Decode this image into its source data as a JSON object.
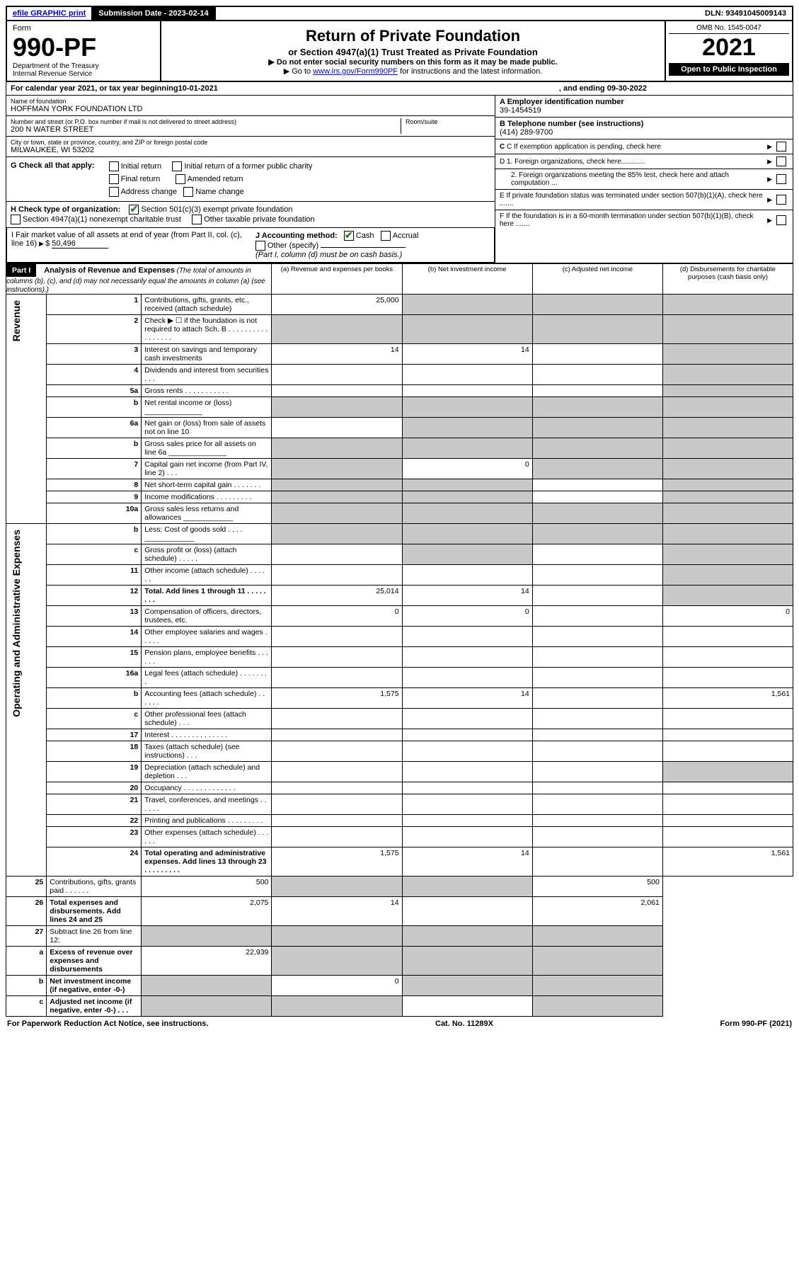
{
  "topbar": {
    "efile": "efile GRAPHIC print",
    "submission_label": "Submission Date - 2023-02-14",
    "dln": "DLN: 93491045009143"
  },
  "header": {
    "form_label": "Form",
    "form_number": "990-PF",
    "dept": "Department of the Treasury",
    "irs": "Internal Revenue Service",
    "title": "Return of Private Foundation",
    "subtitle": "or Section 4947(a)(1) Trust Treated as Private Foundation",
    "instr1": "▶ Do not enter social security numbers on this form as it may be made public.",
    "instr2_pre": "▶ Go to ",
    "instr2_link": "www.irs.gov/Form990PF",
    "instr2_post": " for instructions and the latest information.",
    "omb": "OMB No. 1545-0047",
    "year": "2021",
    "open": "Open to Public Inspection"
  },
  "calendar": {
    "text_pre": "For calendar year 2021, or tax year beginning ",
    "begin": "10-01-2021",
    "mid": ", and ending ",
    "end": "09-30-2022"
  },
  "entity": {
    "name_lbl": "Name of foundation",
    "name": "HOFFMAN YORK FOUNDATION LTD",
    "addr_lbl": "Number and street (or P.O. box number if mail is not delivered to street address)",
    "addr": "200 N WATER STREET",
    "room_lbl": "Room/suite",
    "city_lbl": "City or town, state or province, country, and ZIP or foreign postal code",
    "city": "MILWAUKEE, WI  53202",
    "ein_lbl": "A Employer identification number",
    "ein": "39-1454519",
    "tel_lbl": "B Telephone number (see instructions)",
    "tel": "(414) 289-9700",
    "c_lbl": "C If exemption application is pending, check here",
    "d1": "D 1. Foreign organizations, check here............",
    "d2": "2. Foreign organizations meeting the 85% test, check here and attach computation ...",
    "e": "E  If private foundation status was terminated under section 507(b)(1)(A), check here .......",
    "f": "F  If the foundation is in a 60-month termination under section 507(b)(1)(B), check here .......",
    "g_lbl": "G Check all that apply:",
    "g_opts": [
      "Initial return",
      "Initial return of a former public charity",
      "Final return",
      "Amended return",
      "Address change",
      "Name change"
    ],
    "h_lbl": "H Check type of organization:",
    "h_opt1": "Section 501(c)(3) exempt private foundation",
    "h_opt2": "Section 4947(a)(1) nonexempt charitable trust",
    "h_opt3": "Other taxable private foundation",
    "i_lbl": "I Fair market value of all assets at end of year (from Part II, col. (c), line 16)",
    "i_val": "50,496",
    "j_lbl": "J Accounting method:",
    "j_cash": "Cash",
    "j_accrual": "Accrual",
    "j_other": "Other (specify)",
    "j_note": "(Part I, column (d) must be on cash basis.)"
  },
  "part1": {
    "label": "Part I",
    "title": "Analysis of Revenue and Expenses",
    "note": "(The total of amounts in columns (b), (c), and (d) may not necessarily equal the amounts in column (a) (see instructions).)",
    "col_a": "(a)   Revenue and expenses per books",
    "col_b": "(b)   Net investment income",
    "col_c": "(c)   Adjusted net income",
    "col_d": "(d)  Disbursements for charitable purposes (cash basis only)",
    "side_rev": "Revenue",
    "side_exp": "Operating and Administrative Expenses"
  },
  "rows": [
    {
      "n": "1",
      "desc": "Contributions, gifts, grants, etc., received (attach schedule)",
      "a": "25,000",
      "b": "",
      "c": "",
      "d": "",
      "shade_b": true,
      "shade_c": true,
      "shade_d": true
    },
    {
      "n": "2",
      "desc": "Check ▶ ☐ if the foundation is not required to attach Sch. B   .  .  .  .  .  .  .  .  .  .  .  .  .  .  .  .  .",
      "a": "",
      "b": "",
      "c": "",
      "d": "",
      "shade_a": true,
      "shade_b": true,
      "shade_c": true,
      "shade_d": true
    },
    {
      "n": "3",
      "desc": "Interest on savings and temporary cash investments",
      "a": "14",
      "b": "14",
      "c": "",
      "d": "",
      "shade_d": true
    },
    {
      "n": "4",
      "desc": "Dividends and interest from securities   .   .   .",
      "a": "",
      "b": "",
      "c": "",
      "d": "",
      "shade_d": true
    },
    {
      "n": "5a",
      "desc": "Gross rents   .   .   .   .   .   .   .   .   .   .   .",
      "a": "",
      "b": "",
      "c": "",
      "d": "",
      "shade_d": true
    },
    {
      "n": "b",
      "desc": "Net rental income or (loss)  ______________",
      "a": "",
      "b": "",
      "c": "",
      "d": "",
      "shade_a": true,
      "shade_b": true,
      "shade_c": true,
      "shade_d": true
    },
    {
      "n": "6a",
      "desc": "Net gain or (loss) from sale of assets not on line 10",
      "a": "",
      "b": "",
      "c": "",
      "d": "",
      "shade_b": true,
      "shade_c": true,
      "shade_d": true
    },
    {
      "n": "b",
      "desc": "Gross sales price for all assets on line 6a ______________",
      "a": "",
      "b": "",
      "c": "",
      "d": "",
      "shade_a": true,
      "shade_b": true,
      "shade_c": true,
      "shade_d": true
    },
    {
      "n": "7",
      "desc": "Capital gain net income (from Part IV, line 2)   .   .   .",
      "a": "",
      "b": "0",
      "c": "",
      "d": "",
      "shade_a": true,
      "shade_c": true,
      "shade_d": true
    },
    {
      "n": "8",
      "desc": "Net short-term capital gain   .   .   .   .   .   .   .",
      "a": "",
      "b": "",
      "c": "",
      "d": "",
      "shade_a": true,
      "shade_b": true,
      "shade_d": true
    },
    {
      "n": "9",
      "desc": "Income modifications   .   .   .   .   .   .   .   .   .",
      "a": "",
      "b": "",
      "c": "",
      "d": "",
      "shade_a": true,
      "shade_b": true,
      "shade_d": true
    },
    {
      "n": "10a",
      "desc": "Gross sales less returns and allowances  ____________",
      "a": "",
      "b": "",
      "c": "",
      "d": "",
      "shade_a": true,
      "shade_b": true,
      "shade_c": true,
      "shade_d": true
    },
    {
      "n": "b",
      "desc": "Less: Cost of goods sold   .   .   .   .   ____________",
      "a": "",
      "b": "",
      "c": "",
      "d": "",
      "shade_a": true,
      "shade_b": true,
      "shade_c": true,
      "shade_d": true
    },
    {
      "n": "c",
      "desc": "Gross profit or (loss) (attach schedule)   .   .   .   .   .",
      "a": "",
      "b": "",
      "c": "",
      "d": "",
      "shade_b": true,
      "shade_d": true
    },
    {
      "n": "11",
      "desc": "Other income (attach schedule)   .   .   .   .   .   .",
      "a": "",
      "b": "",
      "c": "",
      "d": "",
      "shade_d": true
    },
    {
      "n": "12",
      "desc": "Total. Add lines 1 through 11   .   .   .   .   .   .   .   .",
      "bold": true,
      "a": "25,014",
      "b": "14",
      "c": "",
      "d": "",
      "shade_d": true
    },
    {
      "n": "13",
      "desc": "Compensation of officers, directors, trustees, etc.",
      "a": "0",
      "b": "0",
      "c": "",
      "d": "0"
    },
    {
      "n": "14",
      "desc": "Other employee salaries and wages   .   .   .   .   .",
      "a": "",
      "b": "",
      "c": "",
      "d": ""
    },
    {
      "n": "15",
      "desc": "Pension plans, employee benefits   .   .   .   .   .   .",
      "a": "",
      "b": "",
      "c": "",
      "d": ""
    },
    {
      "n": "16a",
      "desc": "Legal fees (attach schedule)   .   .   .   .   .   .   .   .",
      "a": "",
      "b": "",
      "c": "",
      "d": ""
    },
    {
      "n": "b",
      "desc": "Accounting fees (attach schedule)   .   .   .   .   .   .",
      "a": "1,575",
      "b": "14",
      "c": "",
      "d": "1,561"
    },
    {
      "n": "c",
      "desc": "Other professional fees (attach schedule)   .   .   .",
      "a": "",
      "b": "",
      "c": "",
      "d": ""
    },
    {
      "n": "17",
      "desc": "Interest   .   .   .   .   .   .   .   .   .   .   .   .   .   .",
      "a": "",
      "b": "",
      "c": "",
      "d": ""
    },
    {
      "n": "18",
      "desc": "Taxes (attach schedule) (see instructions)   .   .   .",
      "a": "",
      "b": "",
      "c": "",
      "d": ""
    },
    {
      "n": "19",
      "desc": "Depreciation (attach schedule) and depletion   .   .   .",
      "a": "",
      "b": "",
      "c": "",
      "d": "",
      "shade_d": true
    },
    {
      "n": "20",
      "desc": "Occupancy   .   .   .   .   .   .   .   .   .   .   .   .   .",
      "a": "",
      "b": "",
      "c": "",
      "d": ""
    },
    {
      "n": "21",
      "desc": "Travel, conferences, and meetings   .   .   .   .   .   .",
      "a": "",
      "b": "",
      "c": "",
      "d": ""
    },
    {
      "n": "22",
      "desc": "Printing and publications   .   .   .   .   .   .   .   .   .",
      "a": "",
      "b": "",
      "c": "",
      "d": ""
    },
    {
      "n": "23",
      "desc": "Other expenses (attach schedule)   .   .   .   .   .   .",
      "a": "",
      "b": "",
      "c": "",
      "d": ""
    },
    {
      "n": "24",
      "desc": "Total operating and administrative expenses. Add lines 13 through 23   .   .   .   .   .   .   .   .   .",
      "bold": true,
      "a": "1,575",
      "b": "14",
      "c": "",
      "d": "1,561"
    },
    {
      "n": "25",
      "desc": "Contributions, gifts, grants paid   .   .   .   .   .   .",
      "a": "500",
      "b": "",
      "c": "",
      "d": "500",
      "shade_b": true,
      "shade_c": true
    },
    {
      "n": "26",
      "desc": "Total expenses and disbursements. Add lines 24 and 25",
      "bold": true,
      "a": "2,075",
      "b": "14",
      "c": "",
      "d": "2,061"
    },
    {
      "n": "27",
      "desc": "Subtract line 26 from line 12:",
      "a": "",
      "b": "",
      "c": "",
      "d": "",
      "shade_a": true,
      "shade_b": true,
      "shade_c": true,
      "shade_d": true
    },
    {
      "n": "a",
      "desc": "Excess of revenue over expenses and disbursements",
      "bold": true,
      "a": "22,939",
      "b": "",
      "c": "",
      "d": "",
      "shade_b": true,
      "shade_c": true,
      "shade_d": true
    },
    {
      "n": "b",
      "desc": "Net investment income (if negative, enter -0-)",
      "bold": true,
      "a": "",
      "b": "0",
      "c": "",
      "d": "",
      "shade_a": true,
      "shade_c": true,
      "shade_d": true
    },
    {
      "n": "c",
      "desc": "Adjusted net income (if negative, enter -0-)   .   .   .",
      "bold": true,
      "a": "",
      "b": "",
      "c": "",
      "d": "",
      "shade_a": true,
      "shade_b": true,
      "shade_d": true
    }
  ],
  "footer": {
    "left": "For Paperwork Reduction Act Notice, see instructions.",
    "mid": "Cat. No. 11289X",
    "right": "Form 990-PF (2021)"
  }
}
